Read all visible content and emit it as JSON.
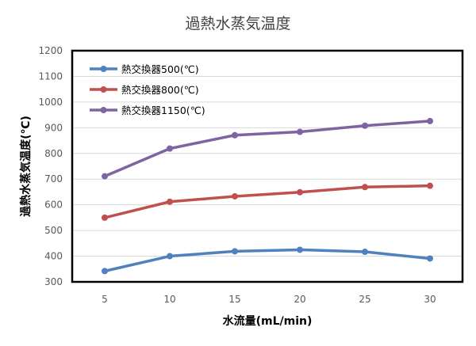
{
  "chart_data": {
    "type": "line",
    "title": "過熱水蒸気温度",
    "xlabel": "水流量(mL/min)",
    "ylabel": "過熱水蒸気温度(℃)",
    "x": [
      5,
      10,
      15,
      20,
      25,
      30
    ],
    "xlim": [
      2.5,
      32.5
    ],
    "ylim": [
      300,
      1200
    ],
    "yticks": [
      300,
      400,
      500,
      600,
      700,
      800,
      900,
      1000,
      1100,
      1200
    ],
    "xticks": [
      5,
      10,
      15,
      20,
      25,
      30
    ],
    "grid": "horizontal",
    "legend_position": "top-left",
    "series": [
      {
        "name": "熱交換器500(℃)",
        "color": "#4f81bd",
        "values": [
          342,
          400,
          419,
          425,
          417,
          391
        ]
      },
      {
        "name": "熱交換器800(℃)",
        "color": "#c0504d",
        "values": [
          550,
          612,
          633,
          649,
          669,
          674
        ]
      },
      {
        "name": "熱交換器1150(℃)",
        "color": "#8064a2",
        "values": [
          711,
          819,
          871,
          884,
          908,
          926
        ]
      }
    ]
  }
}
